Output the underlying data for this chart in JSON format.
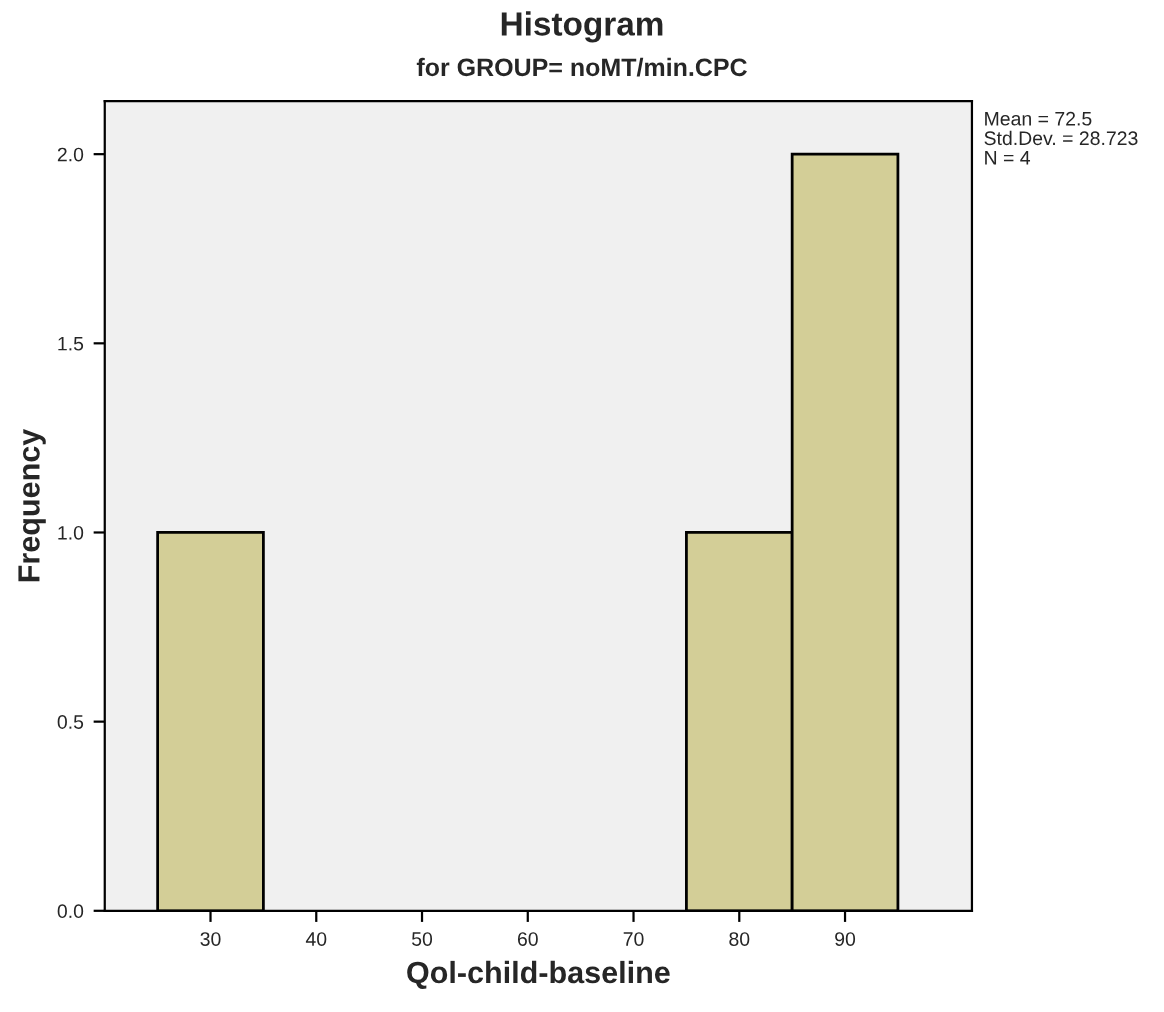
{
  "chart_data": {
    "type": "histogram",
    "title": "Histogram",
    "subtitle": "for GROUP= noMT/min.CPC",
    "xlabel": "Qol-child-baseline",
    "ylabel": "Frequency",
    "bins": [
      25,
      35,
      45,
      55,
      65,
      75,
      85,
      95
    ],
    "values": [
      1,
      0,
      0,
      0,
      0,
      1,
      2
    ],
    "color": "#d3ce97",
    "xlim": [
      20,
      102
    ],
    "ylim": [
      0,
      2.14
    ],
    "xticks": [
      30,
      40,
      50,
      60,
      70,
      80,
      90
    ],
    "yticks": [
      {
        "value": 0,
        "label": "0.0"
      },
      {
        "value": 0.5,
        "label": "0.5"
      },
      {
        "value": 1,
        "label": "1.0"
      },
      {
        "value": 1.5,
        "label": "1.5"
      },
      {
        "value": 2,
        "label": "2.0"
      }
    ],
    "grid": false,
    "annotations": [
      "Mean = 72.5\nStd.Dev. = 28.723\nN = 4"
    ]
  }
}
